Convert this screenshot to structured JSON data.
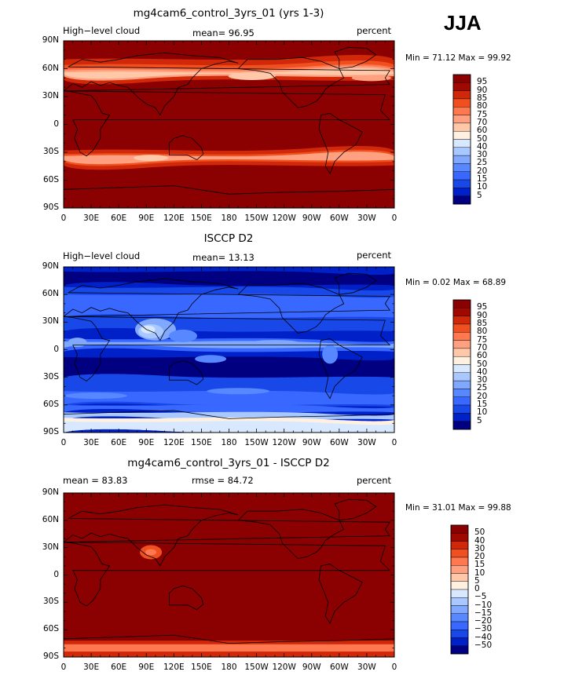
{
  "season": "JJA",
  "panels": [
    {
      "title": "mg4cam6_control_3yrs_01 (yrs 1-3)",
      "left_label": "High−level cloud",
      "center_label": "mean=   96.95",
      "right_label": "percent",
      "min_max": "Min =   71.12  Max =   99.92",
      "colorbar_labels": [
        "95",
        "90",
        "85",
        "80",
        "75",
        "70",
        "60",
        "50",
        "40",
        "30",
        "25",
        "20",
        "15",
        "10",
        "5"
      ]
    },
    {
      "title": "ISCCP D2",
      "left_label": "High−level cloud",
      "center_label": "mean=   13.13",
      "right_label": "percent",
      "min_max": "Min =    0.02  Max =   68.89",
      "colorbar_labels": [
        "95",
        "90",
        "85",
        "80",
        "75",
        "70",
        "60",
        "50",
        "40",
        "30",
        "25",
        "20",
        "15",
        "10",
        "5"
      ]
    },
    {
      "title": "mg4cam6_control_3yrs_01 - ISCCP D2",
      "left_label": "mean =   83.83",
      "center_label": "rmse =   84.72",
      "right_label": "percent",
      "min_max": "Min =   31.01  Max =   99.88",
      "colorbar_labels": [
        "50",
        "40",
        "30",
        "20",
        "15",
        "10",
        "5",
        "0",
        "−5",
        "−10",
        "−15",
        "−20",
        "−30",
        "−40",
        "−50"
      ]
    }
  ],
  "axes": {
    "lat_labels": [
      "90N",
      "60N",
      "30N",
      "0",
      "30S",
      "60S",
      "90S"
    ],
    "lon_labels": [
      "0",
      "30E",
      "60E",
      "90E",
      "120E",
      "150E",
      "180",
      "150W",
      "120W",
      "90W",
      "60W",
      "30W",
      "0"
    ]
  },
  "colors": {
    "scale": [
      "#000080",
      "#0020c8",
      "#1848e8",
      "#3868ff",
      "#5888ff",
      "#80a8ff",
      "#a8c8ff",
      "#d8e8ff",
      "#fff0e0",
      "#ffc8a8",
      "#ffa080",
      "#ff7850",
      "#f05020",
      "#d02808",
      "#a00800",
      "#8b0000"
    ],
    "land_outline": "#000000"
  },
  "chart_data": [
    {
      "type": "heatmap",
      "title": "mg4cam6_control_3yrs_01 (yrs 1-3)",
      "variable": "High-level cloud",
      "units": "percent",
      "mean": 96.95,
      "min": 71.12,
      "max": 99.92,
      "x_range": [
        0,
        360
      ],
      "y_range": [
        -90,
        90
      ],
      "levels": [
        5,
        10,
        15,
        20,
        25,
        30,
        40,
        50,
        60,
        70,
        75,
        80,
        85,
        90,
        95
      ],
      "zonal_mean_approx": {
        "lat": [
          -90,
          -60,
          -40,
          -35,
          -30,
          0,
          40,
          50,
          60,
          90
        ],
        "value": [
          99,
          99,
          98,
          88,
          98,
          99,
          98,
          84,
          96,
          99
        ]
      }
    },
    {
      "type": "heatmap",
      "title": "ISCCP D2",
      "variable": "High-level cloud",
      "units": "percent",
      "mean": 13.13,
      "min": 0.02,
      "max": 68.89,
      "x_range": [
        0,
        360
      ],
      "y_range": [
        -90,
        90
      ],
      "levels": [
        5,
        10,
        15,
        20,
        25,
        30,
        40,
        50,
        60,
        70,
        75,
        80,
        85,
        90,
        95
      ],
      "zonal_mean_approx": {
        "lat": [
          -90,
          -75,
          -60,
          -30,
          -15,
          0,
          10,
          30,
          45,
          60,
          90
        ],
        "value": [
          40,
          35,
          15,
          5,
          8,
          14,
          22,
          12,
          18,
          15,
          5
        ]
      }
    },
    {
      "type": "heatmap",
      "title": "mg4cam6_control_3yrs_01 - ISCCP D2",
      "units": "percent",
      "mean": 83.83,
      "rmse": 84.72,
      "min": 31.01,
      "max": 99.88,
      "x_range": [
        0,
        360
      ],
      "y_range": [
        -90,
        90
      ],
      "levels": [
        -50,
        -40,
        -30,
        -20,
        -15,
        -10,
        -5,
        0,
        5,
        10,
        15,
        20,
        30,
        40,
        50
      ]
    }
  ]
}
